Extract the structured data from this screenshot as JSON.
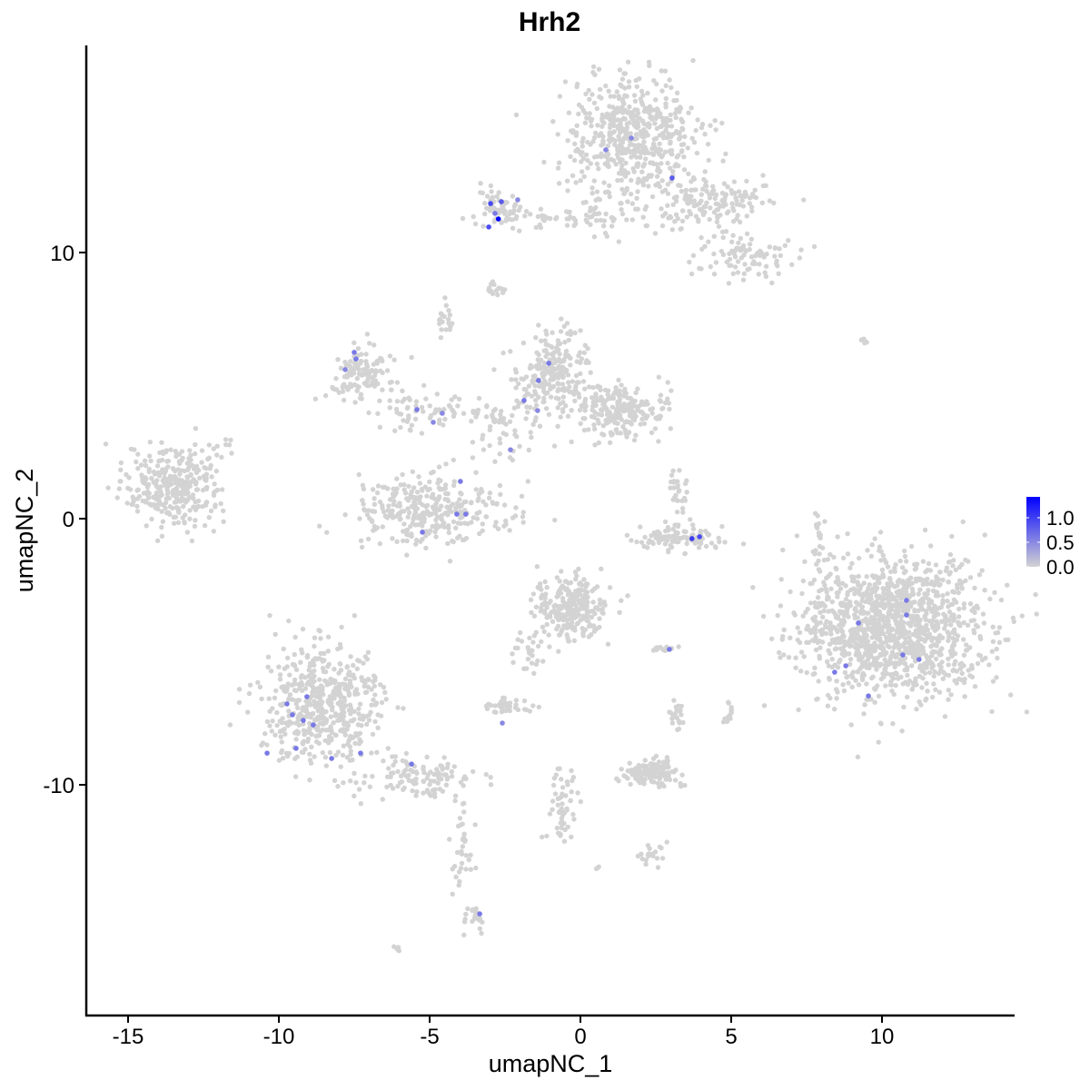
{
  "chart_data": {
    "type": "scatter",
    "title": "Hrh2",
    "xlabel": "umapNC_1",
    "ylabel": "umapNC_2",
    "xlim": [
      -16.4,
      14.4
    ],
    "ylim": [
      -18.7,
      17.8
    ],
    "xticks": [
      -15,
      -10,
      -5,
      0,
      5,
      10
    ],
    "yticks": [
      -10,
      0,
      10
    ],
    "xtick_labels": [
      "-15",
      "-10",
      "-5",
      "0",
      "5",
      "10"
    ],
    "ytick_labels": [
      "-10",
      "0",
      "10"
    ],
    "grid": false,
    "color_scale": {
      "low": "#D3D3D3",
      "high": "#0000FF",
      "min": 0,
      "max": 1.4,
      "ticks": [
        0.0,
        0.5,
        1.0
      ],
      "tick_labels": [
        "0.0",
        "0.5",
        "1.0"
      ]
    },
    "legend_position": "right",
    "background_clusters": [
      {
        "x": 1.7,
        "y": 14.4,
        "sx": 1.1,
        "sy": 1.1,
        "n": 520
      },
      {
        "x": 4.2,
        "y": 12.0,
        "sx": 1.0,
        "sy": 0.5,
        "n": 150
      },
      {
        "x": 5.4,
        "y": 9.8,
        "sx": 0.8,
        "sy": 0.5,
        "n": 90
      },
      {
        "x": -2.7,
        "y": 11.6,
        "sx": 0.45,
        "sy": 0.4,
        "n": 60
      },
      {
        "x": -0.8,
        "y": 11.3,
        "sx": 1.0,
        "sy": 0.2,
        "n": 40
      },
      {
        "x": 1.0,
        "y": 11.6,
        "sx": 0.6,
        "sy": 0.7,
        "n": 40
      },
      {
        "x": -2.8,
        "y": 8.6,
        "sx": 0.2,
        "sy": 0.15,
        "n": 15
      },
      {
        "x": -13.5,
        "y": 1.2,
        "sx": 0.8,
        "sy": 0.7,
        "n": 320
      },
      {
        "x": -11.9,
        "y": 2.8,
        "sx": 0.2,
        "sy": 0.2,
        "n": 10
      },
      {
        "x": -7.2,
        "y": 5.5,
        "sx": 0.6,
        "sy": 0.5,
        "n": 120
      },
      {
        "x": -5.0,
        "y": 4.0,
        "sx": 1.1,
        "sy": 0.3,
        "n": 70
      },
      {
        "x": -4.5,
        "y": 7.4,
        "sx": 0.15,
        "sy": 0.3,
        "n": 20
      },
      {
        "x": -5.1,
        "y": 0.3,
        "sx": 1.2,
        "sy": 0.6,
        "n": 320
      },
      {
        "x": -0.9,
        "y": 5.5,
        "sx": 0.6,
        "sy": 0.7,
        "n": 220
      },
      {
        "x": 1.3,
        "y": 4.1,
        "sx": 0.8,
        "sy": 0.5,
        "n": 220
      },
      {
        "x": -2.5,
        "y": 3.3,
        "sx": 0.7,
        "sy": 1.0,
        "n": 60
      },
      {
        "x": 3.3,
        "y": -0.7,
        "sx": 0.7,
        "sy": 0.25,
        "n": 110
      },
      {
        "x": 3.2,
        "y": 0.9,
        "sx": 0.2,
        "sy": 0.5,
        "n": 30
      },
      {
        "x": 10.3,
        "y": -4.1,
        "sx": 1.5,
        "sy": 1.3,
        "n": 1300
      },
      {
        "x": -0.3,
        "y": -3.4,
        "sx": 0.6,
        "sy": 0.6,
        "n": 260
      },
      {
        "x": -8.6,
        "y": -7.1,
        "sx": 1.0,
        "sy": 1.2,
        "n": 520
      },
      {
        "x": -5.5,
        "y": -9.7,
        "sx": 0.9,
        "sy": 0.4,
        "n": 110
      },
      {
        "x": -3.9,
        "y": -12.5,
        "sx": 0.2,
        "sy": 1.2,
        "n": 40
      },
      {
        "x": -3.4,
        "y": -15.0,
        "sx": 0.2,
        "sy": 0.2,
        "n": 20
      },
      {
        "x": -2.4,
        "y": -7.0,
        "sx": 0.35,
        "sy": 0.15,
        "n": 40
      },
      {
        "x": -1.7,
        "y": -5.2,
        "sx": 0.4,
        "sy": 0.5,
        "n": 25
      },
      {
        "x": 2.3,
        "y": -9.5,
        "sx": 0.5,
        "sy": 0.3,
        "n": 120
      },
      {
        "x": -0.6,
        "y": -10.6,
        "sx": 0.3,
        "sy": 0.8,
        "n": 55
      },
      {
        "x": 2.3,
        "y": -12.6,
        "sx": 0.3,
        "sy": 0.2,
        "n": 20
      },
      {
        "x": 7.9,
        "y": -0.6,
        "sx": 0.1,
        "sy": 0.6,
        "n": 20
      },
      {
        "x": 9.4,
        "y": 6.7,
        "sx": 0.1,
        "sy": 0.05,
        "n": 5
      },
      {
        "x": -6.1,
        "y": -16.1,
        "sx": 0.1,
        "sy": 0.1,
        "n": 5
      },
      {
        "x": 4.9,
        "y": -7.3,
        "sx": 0.1,
        "sy": 0.2,
        "n": 15
      },
      {
        "x": 3.2,
        "y": -7.5,
        "sx": 0.1,
        "sy": 0.3,
        "n": 20
      },
      {
        "x": 2.7,
        "y": -4.9,
        "sx": 0.3,
        "sy": 0.05,
        "n": 15
      },
      {
        "x": 0.6,
        "y": -13.1,
        "sx": 0.05,
        "sy": 0.05,
        "n": 3
      }
    ],
    "expressing_cells": [
      {
        "x": -2.72,
        "y": 11.26,
        "v": 1.4
      },
      {
        "x": -2.98,
        "y": 11.84,
        "v": 0.9
      },
      {
        "x": -3.04,
        "y": 10.96,
        "v": 0.9
      },
      {
        "x": -2.62,
        "y": 11.91,
        "v": 0.8
      },
      {
        "x": -2.08,
        "y": 11.98,
        "v": 0.5
      },
      {
        "x": -2.83,
        "y": 11.47,
        "v": 0.6
      },
      {
        "x": 0.84,
        "y": 13.86,
        "v": 0.5
      },
      {
        "x": 1.69,
        "y": 14.3,
        "v": 0.5
      },
      {
        "x": 3.04,
        "y": 12.8,
        "v": 0.8
      },
      {
        "x": -7.5,
        "y": 6.25,
        "v": 0.6
      },
      {
        "x": -7.8,
        "y": 5.6,
        "v": 0.5
      },
      {
        "x": -7.44,
        "y": 6.0,
        "v": 0.6
      },
      {
        "x": -1.05,
        "y": 5.84,
        "v": 0.6
      },
      {
        "x": -1.39,
        "y": 5.19,
        "v": 0.6
      },
      {
        "x": -1.87,
        "y": 4.44,
        "v": 0.6
      },
      {
        "x": -1.42,
        "y": 4.06,
        "v": 0.5
      },
      {
        "x": -5.42,
        "y": 4.1,
        "v": 0.6
      },
      {
        "x": -4.88,
        "y": 3.62,
        "v": 0.5
      },
      {
        "x": -4.58,
        "y": 3.96,
        "v": 0.5
      },
      {
        "x": -2.32,
        "y": 2.59,
        "v": 0.5
      },
      {
        "x": -3.98,
        "y": 1.4,
        "v": 0.6
      },
      {
        "x": -4.1,
        "y": 0.17,
        "v": 0.6
      },
      {
        "x": -3.8,
        "y": 0.17,
        "v": 0.6
      },
      {
        "x": -5.24,
        "y": -0.51,
        "v": 0.6
      },
      {
        "x": 3.7,
        "y": -0.75,
        "v": 1.0
      },
      {
        "x": 3.95,
        "y": -0.68,
        "v": 0.9
      },
      {
        "x": 10.81,
        "y": -3.07,
        "v": 0.6
      },
      {
        "x": 10.81,
        "y": -3.62,
        "v": 0.6
      },
      {
        "x": 9.22,
        "y": -3.92,
        "v": 0.6
      },
      {
        "x": 10.69,
        "y": -5.12,
        "v": 0.6
      },
      {
        "x": 11.23,
        "y": -5.29,
        "v": 0.6
      },
      {
        "x": 8.8,
        "y": -5.53,
        "v": 0.6
      },
      {
        "x": 8.43,
        "y": -5.77,
        "v": 0.6
      },
      {
        "x": 9.55,
        "y": -6.66,
        "v": 0.6
      },
      {
        "x": 2.95,
        "y": -4.91,
        "v": 0.6
      },
      {
        "x": -2.59,
        "y": -7.68,
        "v": 0.5
      },
      {
        "x": -9.73,
        "y": -6.96,
        "v": 0.6
      },
      {
        "x": -9.07,
        "y": -6.69,
        "v": 0.6
      },
      {
        "x": -9.55,
        "y": -7.37,
        "v": 0.6
      },
      {
        "x": -9.19,
        "y": -7.58,
        "v": 0.6
      },
      {
        "x": -8.86,
        "y": -7.75,
        "v": 0.6
      },
      {
        "x": -9.43,
        "y": -8.63,
        "v": 0.6
      },
      {
        "x": -10.39,
        "y": -8.81,
        "v": 0.6
      },
      {
        "x": -8.25,
        "y": -9.01,
        "v": 0.6
      },
      {
        "x": -7.29,
        "y": -8.81,
        "v": 0.6
      },
      {
        "x": -5.6,
        "y": -9.22,
        "v": 0.6
      },
      {
        "x": -3.34,
        "y": -14.85,
        "v": 0.6
      }
    ]
  }
}
